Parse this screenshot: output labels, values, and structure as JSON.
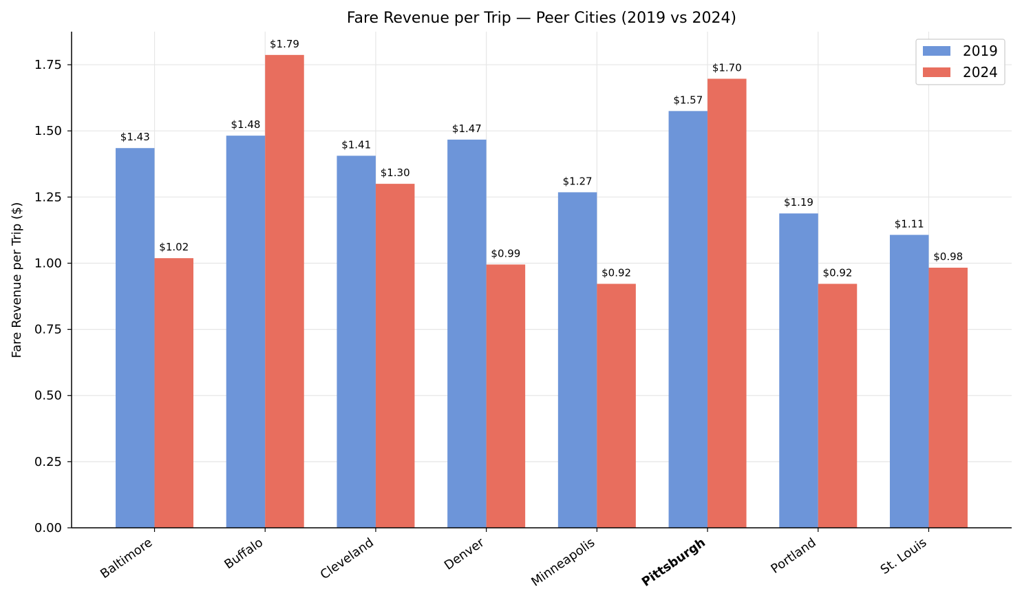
{
  "chart_data": {
    "type": "bar",
    "title": "Fare Revenue per Trip — Peer Cities (2019 vs 2024)",
    "xlabel": "",
    "ylabel": "Fare Revenue per Trip ($)",
    "ylim": [
      0,
      1.875
    ],
    "yticks": [
      "0.00",
      "0.25",
      "0.50",
      "0.75",
      "1.00",
      "1.25",
      "1.50",
      "1.75"
    ],
    "ytick_values": [
      0,
      0.25,
      0.5,
      0.75,
      1.0,
      1.25,
      1.5,
      1.75
    ],
    "categories": [
      "Baltimore",
      "Buffalo",
      "Cleveland",
      "Denver",
      "Minneapolis",
      "Pittsburgh",
      "Portland",
      "St. Louis"
    ],
    "highlight_category": "Pittsburgh",
    "series": [
      {
        "name": "2019",
        "color": "#6d95d9",
        "values": [
          1.435,
          1.482,
          1.406,
          1.467,
          1.268,
          1.575,
          1.188,
          1.107
        ],
        "labels": [
          "$1.43",
          "$1.48",
          "$1.41",
          "$1.47",
          "$1.27",
          "$1.57",
          "$1.19",
          "$1.11"
        ]
      },
      {
        "name": "2024",
        "color": "#e86e5e",
        "values": [
          1.019,
          1.787,
          1.3,
          0.995,
          0.922,
          1.697,
          0.922,
          0.983
        ],
        "labels": [
          "$1.02",
          "$1.79",
          "$1.30",
          "$0.99",
          "$0.92",
          "$1.70",
          "$0.92",
          "$0.98"
        ]
      }
    ],
    "grid": true,
    "legend_position": "top-right"
  }
}
